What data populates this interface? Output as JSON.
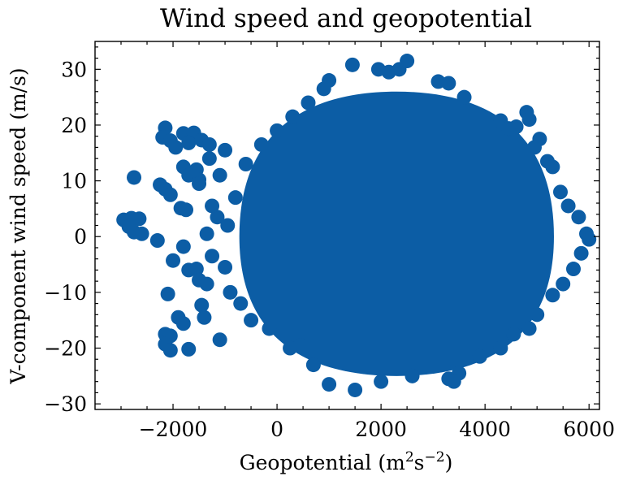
{
  "chart_data": {
    "type": "scatter",
    "title": "Wind speed and geopotential",
    "xlabel": "Geopotential (m",
    "xlabel_sup1": "2",
    "xlabel_mid": "s",
    "xlabel_sup2": "−2",
    "xlabel_end": ")",
    "ylabel": "V-component wind speed (m/s)",
    "xlim": [
      -3500,
      6200
    ],
    "ylim": [
      -31,
      35
    ],
    "xticks": [
      -2000,
      0,
      2000,
      4000,
      6000
    ],
    "yticks": [
      -30,
      -20,
      -10,
      0,
      10,
      20,
      30
    ],
    "xtick_labels": [
      "−2000",
      "0",
      "2000",
      "4000",
      "6000"
    ],
    "ytick_labels": [
      "−30",
      "−20",
      "−10",
      "0",
      "10",
      "20",
      "30"
    ],
    "color": "#0c5da5",
    "grid": false,
    "cloud": {
      "center": [
        2300,
        0
      ],
      "x_range": [
        0,
        4800
      ],
      "y_range": [
        -25,
        26
      ]
    },
    "points": [
      [
        -2950,
        3.0
      ],
      [
        -2800,
        3.3
      ],
      [
        -2850,
        1.8
      ],
      [
        -2750,
        0.8
      ],
      [
        -2650,
        3.2
      ],
      [
        -2600,
        0.5
      ],
      [
        -2750,
        10.6
      ],
      [
        -2300,
        -0.7
      ],
      [
        -2250,
        9.3
      ],
      [
        -2150,
        8.5
      ],
      [
        -2050,
        7.5
      ],
      [
        -2150,
        19.5
      ],
      [
        -2200,
        17.8
      ],
      [
        -2050,
        17.2
      ],
      [
        -1950,
        16.0
      ],
      [
        -1800,
        18.5
      ],
      [
        -1600,
        18.6
      ],
      [
        -1700,
        16.8
      ],
      [
        -1450,
        17.3
      ],
      [
        -1300,
        16.5
      ],
      [
        -1800,
        12.5
      ],
      [
        -1550,
        12.0
      ],
      [
        -1700,
        11.0
      ],
      [
        -1500,
        10.2
      ],
      [
        -1500,
        9.5
      ],
      [
        -1300,
        14.0
      ],
      [
        -1850,
        5.1
      ],
      [
        -1750,
        4.8
      ],
      [
        -2000,
        -4.3
      ],
      [
        -1800,
        -1.8
      ],
      [
        -1700,
        -6.0
      ],
      [
        -1550,
        -5.8
      ],
      [
        -1500,
        -7.8
      ],
      [
        -1350,
        -8.5
      ],
      [
        -2100,
        -10.3
      ],
      [
        -1900,
        -14.5
      ],
      [
        -1800,
        -15.6
      ],
      [
        -1450,
        -12.3
      ],
      [
        -1400,
        -14.5
      ],
      [
        -2150,
        -17.5
      ],
      [
        -2050,
        -17.8
      ],
      [
        -2150,
        -19.3
      ],
      [
        -2050,
        -20.4
      ],
      [
        -1700,
        -20.2
      ],
      [
        -1100,
        -18.5
      ],
      [
        -1250,
        -3.5
      ],
      [
        -1150,
        3.5
      ],
      [
        -1250,
        5.5
      ],
      [
        -1100,
        11.0
      ],
      [
        -1000,
        15.5
      ],
      [
        -1350,
        0.5
      ],
      [
        1450,
        30.8
      ],
      [
        2500,
        31.5
      ],
      [
        2350,
        30.0
      ],
      [
        2150,
        29.5
      ],
      [
        1950,
        30.0
      ],
      [
        3100,
        27.8
      ],
      [
        3300,
        27.5
      ],
      [
        1000,
        28.0
      ],
      [
        900,
        26.5
      ],
      [
        3600,
        25.0
      ],
      [
        4800,
        22.3
      ],
      [
        4850,
        21.0
      ],
      [
        4300,
        20.8
      ],
      [
        4600,
        19.7
      ],
      [
        4450,
        19.4
      ],
      [
        5050,
        17.5
      ],
      [
        4950,
        16.0
      ],
      [
        5200,
        13.5
      ],
      [
        5300,
        12.5
      ],
      [
        5450,
        8.0
      ],
      [
        5600,
        5.5
      ],
      [
        5800,
        3.5
      ],
      [
        5950,
        0.5
      ],
      [
        6000,
        -0.5
      ],
      [
        5850,
        -3.0
      ],
      [
        5700,
        -5.8
      ],
      [
        5500,
        -8.5
      ],
      [
        5300,
        -10.5
      ],
      [
        5000,
        -14.0
      ],
      [
        4850,
        -16.5
      ],
      [
        4550,
        -17.5
      ],
      [
        4300,
        -20.0
      ],
      [
        3900,
        -21.5
      ],
      [
        3500,
        -24.5
      ],
      [
        3300,
        -25.5
      ],
      [
        3400,
        -26.0
      ],
      [
        2600,
        -25.0
      ],
      [
        2000,
        -26.0
      ],
      [
        1500,
        -27.5
      ],
      [
        1000,
        -26.5
      ],
      [
        700,
        -23.0
      ],
      [
        450,
        -19.5
      ],
      [
        250,
        -20.0
      ],
      [
        -150,
        -16.5
      ],
      [
        -500,
        -15.0
      ],
      [
        -700,
        -12.0
      ],
      [
        -900,
        -10.0
      ],
      [
        -1000,
        -5.5
      ],
      [
        -950,
        2.0
      ],
      [
        -800,
        7.0
      ],
      [
        -600,
        13.0
      ],
      [
        -300,
        16.5
      ],
      [
        0,
        19.0
      ],
      [
        300,
        21.5
      ],
      [
        600,
        24.0
      ]
    ]
  }
}
